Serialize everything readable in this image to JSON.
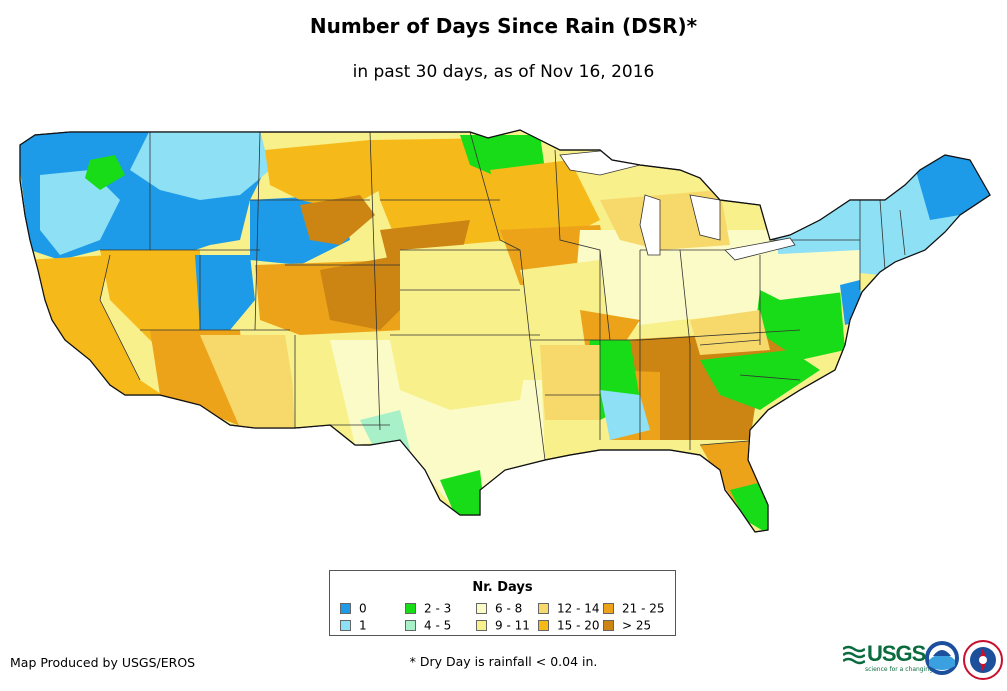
{
  "title": "Number of Days Since Rain (DSR)*",
  "subtitle": "in past 30 days, as of Nov 16, 2016",
  "legend": {
    "title": "Nr. Days",
    "items": [
      {
        "label": "0",
        "color": "#1e9be8"
      },
      {
        "label": "1",
        "color": "#8ee0f5"
      },
      {
        "label": "2 - 3",
        "color": "#17dc17"
      },
      {
        "label": "4 - 5",
        "color": "#a8f0c8"
      },
      {
        "label": "6 - 8",
        "color": "#fbfbc8"
      },
      {
        "label": "9 - 11",
        "color": "#f8f08a"
      },
      {
        "label": "12 - 14",
        "color": "#f7d86a"
      },
      {
        "label": "15 - 20",
        "color": "#f5b91a"
      },
      {
        "label": "21 - 25",
        "color": "#eca31a"
      },
      {
        "label": "> 25",
        "color": "#cc8412"
      }
    ]
  },
  "credit": "Map Produced by USGS/EROS",
  "footnote": "* Dry Day is rainfall < 0.04 in.",
  "logos": {
    "usgs_word": "USGS",
    "usgs_tagline": "science for a changing world",
    "noaa": "NOAA"
  }
}
